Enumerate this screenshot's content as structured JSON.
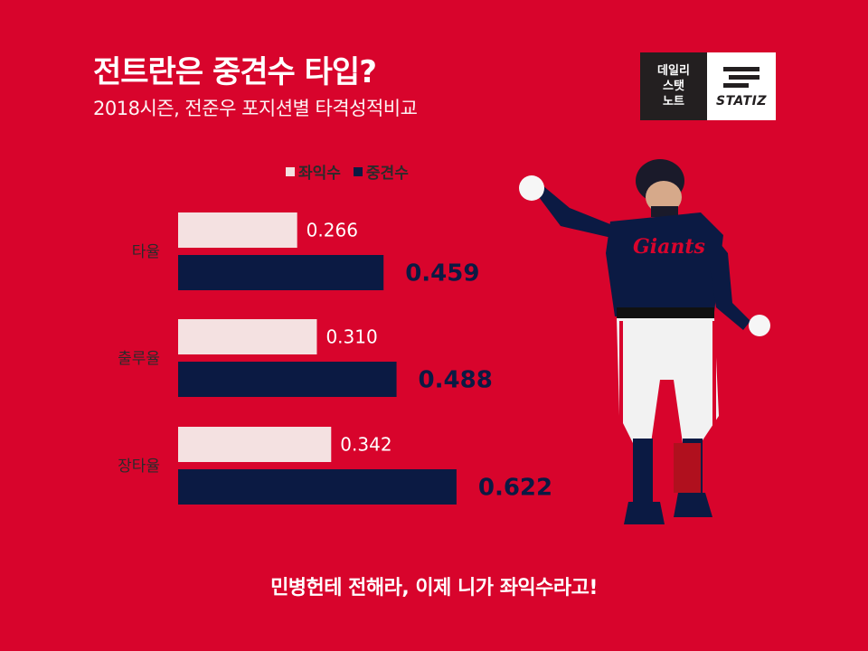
{
  "header": {
    "title": "전트란은 중견수 타입?",
    "subtitle": "2018시즌, 전준우 포지션별 타격성적비교"
  },
  "logo": {
    "left_lines": [
      "데일리",
      "스탯",
      "노트"
    ],
    "wordmark": "STATIZ"
  },
  "colors": {
    "background": "#d8042c",
    "left_field": "#f4e1e1",
    "center_field": "#0b1a43",
    "label_dark": "#2b2b2b"
  },
  "chart_data": {
    "type": "bar",
    "orientation": "horizontal",
    "categories": [
      "타율",
      "출루율",
      "장타율"
    ],
    "series": [
      {
        "name": "좌익수",
        "values": [
          0.266,
          0.31,
          0.342
        ],
        "labels": [
          "0.266",
          "0.310",
          "0.342"
        ]
      },
      {
        "name": "중견수",
        "values": [
          0.459,
          0.488,
          0.622
        ],
        "labels": [
          "0.459",
          "0.488",
          "0.622"
        ]
      }
    ],
    "legend": "top",
    "grid": false
  },
  "footer": {
    "text": "민병헌테 전해라, 이제 니가 좌익수라고!"
  },
  "illustration": {
    "icon": "baseball-player-illustration"
  }
}
